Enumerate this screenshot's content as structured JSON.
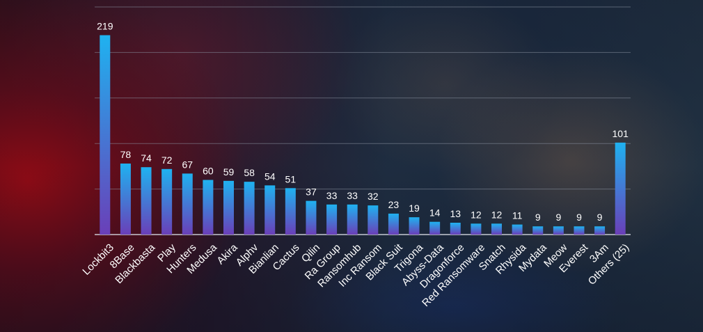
{
  "chart_data": {
    "type": "bar",
    "title": "",
    "xlabel": "",
    "ylabel": "",
    "ylim": [
      0,
      250
    ],
    "grid": true,
    "categories": [
      "Lockbit3",
      "8Base",
      "Blackbasta",
      "Play",
      "Hunters",
      "Medusa",
      "Akira",
      "Alphv",
      "Bianlian",
      "Cactus",
      "Qilin",
      "Ra Group",
      "Ransomhub",
      "Inc Ransom",
      "Black Suit",
      "Trigona",
      "Abyss-Data",
      "Dragonforce",
      "Red Ransomware",
      "Snatch",
      "Rhysida",
      "Mydata",
      "Meow",
      "Everest",
      "3Am",
      "Others (25)"
    ],
    "values": [
      219,
      78,
      74,
      72,
      67,
      60,
      59,
      58,
      54,
      51,
      37,
      33,
      33,
      32,
      23,
      19,
      14,
      13,
      12,
      12,
      11,
      9,
      9,
      9,
      9,
      101
    ],
    "colors": {
      "bar_top": "#1fb2f0",
      "bar_bottom": "#6a3fb8",
      "grid": "#8a93a3",
      "text": "#ffffff"
    }
  }
}
